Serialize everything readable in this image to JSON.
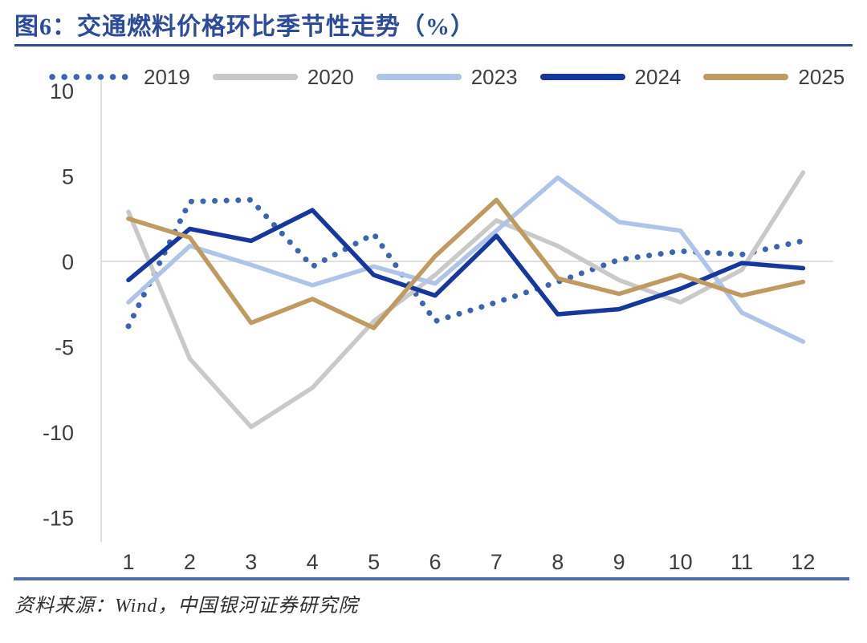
{
  "figure": {
    "title": "图6：交通燃料价格环比季节性走势（%）",
    "source": "资料来源：Wind，中国银河证券研究院"
  },
  "chart_data": {
    "type": "line",
    "title": "交通燃料价格环比季节性走势（%）",
    "xlabel": "",
    "ylabel": "",
    "x": [
      1,
      2,
      3,
      4,
      5,
      6,
      7,
      8,
      9,
      10,
      11,
      12
    ],
    "yticks": [
      10,
      5,
      0,
      -5,
      -10,
      -15
    ],
    "ylim": [
      -15,
      10
    ],
    "grid": "zero line only",
    "legend_position": "top",
    "series": [
      {
        "name": "2019",
        "style": "dotted",
        "color": "#3c64b1",
        "values": [
          -3.8,
          3.5,
          3.6,
          -0.3,
          1.6,
          -3.5,
          -2.4,
          -1.2,
          0.1,
          0.6,
          0.4,
          1.2
        ]
      },
      {
        "name": "2020",
        "style": "solid",
        "color": "#c9c9c9",
        "values": [
          2.9,
          -5.7,
          -9.7,
          -7.4,
          -3.5,
          -0.8,
          2.4,
          0.9,
          -1.1,
          -2.4,
          -0.5,
          5.2
        ]
      },
      {
        "name": "2023",
        "style": "solid",
        "color": "#aec4e8",
        "values": [
          -2.4,
          0.9,
          -0.2,
          -1.4,
          -0.3,
          -1.3,
          1.8,
          4.9,
          2.3,
          1.8,
          -3.0,
          -4.7
        ]
      },
      {
        "name": "2024",
        "style": "solid",
        "color": "#16389c",
        "values": [
          -1.1,
          1.9,
          1.2,
          3.0,
          -0.8,
          -2.0,
          1.5,
          -3.1,
          -2.8,
          -1.6,
          -0.1,
          -0.4
        ]
      },
      {
        "name": "2025",
        "style": "solid",
        "color": "#bf9b62",
        "values": [
          2.5,
          1.4,
          -3.6,
          -2.2,
          -3.9,
          0.3,
          3.6,
          -1.0,
          -1.9,
          -0.8,
          -2.0,
          -1.2
        ]
      }
    ]
  },
  "colors": {
    "title_blue": "#2b4b9b",
    "bottom_rule_blue": "#4c6da5",
    "axis_text": "#3d3d3d",
    "axis_line": "#d6d6d6",
    "zero_line": "#e0e0e0"
  }
}
